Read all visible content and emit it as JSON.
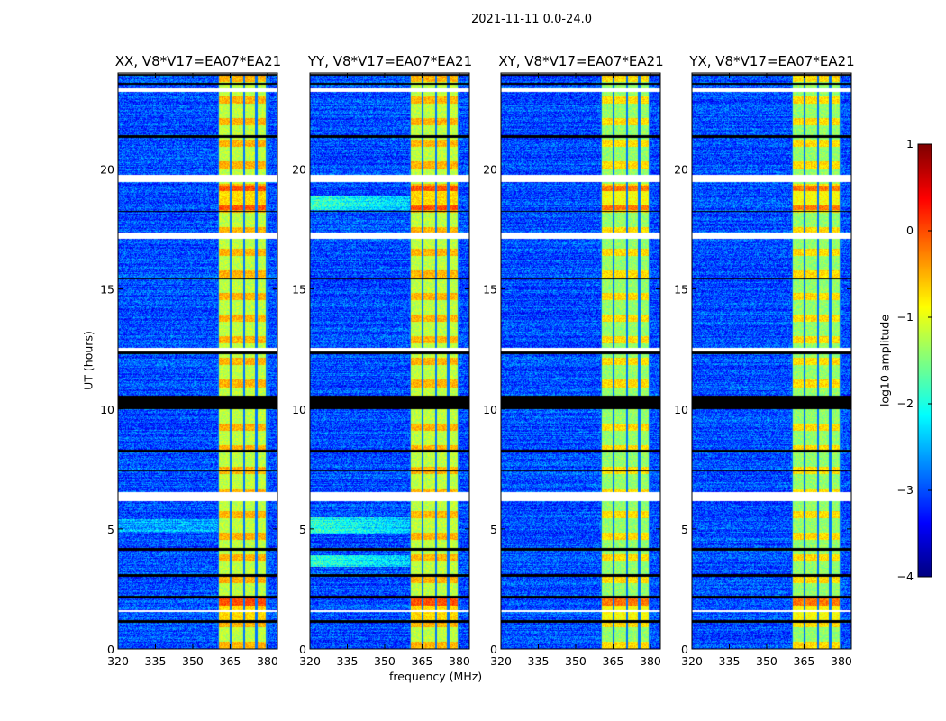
{
  "chart_data": {
    "type": "heatmap",
    "title": "2021-11-11 0.0-24.0",
    "xlabel": "frequency (MHz)",
    "ylabel": "UT (hours)",
    "xlim": [
      320,
      384
    ],
    "ylim": [
      0,
      24
    ],
    "xticks": [
      "320",
      "335",
      "350",
      "365",
      "380"
    ],
    "yticks": [
      "0",
      "5",
      "10",
      "15",
      "20"
    ],
    "panels": [
      {
        "title": "XX, V8*V17=EA07*EA21",
        "pol": "XX"
      },
      {
        "title": "YY, V8*V17=EA07*EA21",
        "pol": "YY"
      },
      {
        "title": "XY, V8*V17=EA07*EA21",
        "pol": "XY"
      },
      {
        "title": "YX, V8*V17=EA07*EA21",
        "pol": "YX"
      }
    ],
    "colorbar": {
      "label": "log10 amplitude",
      "colormap": "jet",
      "range": [
        -4,
        1
      ],
      "ticks": [
        "1",
        "0",
        "−1",
        "−2",
        "−3",
        "−4"
      ]
    },
    "background_level_log10": -3,
    "rfi_band_mhz": [
      360,
      380
    ],
    "rfi_level_log10": [
      -1.5,
      0
    ],
    "flagged_hours_white": [
      [
        23.2,
        23.35
      ],
      [
        19.45,
        19.75
      ],
      [
        17.1,
        17.35
      ],
      [
        12.4,
        12.55
      ],
      [
        6.15,
        6.55
      ],
      [
        1.55,
        1.6
      ]
    ],
    "flagged_hours_black": [
      [
        10.0,
        10.55
      ],
      [
        12.3,
        12.38
      ],
      [
        23.5,
        23.6
      ],
      [
        8.2,
        8.3
      ],
      [
        7.4,
        7.45
      ],
      [
        4.1,
        4.2
      ],
      [
        3.0,
        3.1
      ],
      [
        2.1,
        2.2
      ],
      [
        1.1,
        1.2
      ],
      [
        18.2,
        18.27
      ],
      [
        21.3,
        21.4
      ],
      [
        15.4,
        15.45
      ]
    ]
  }
}
